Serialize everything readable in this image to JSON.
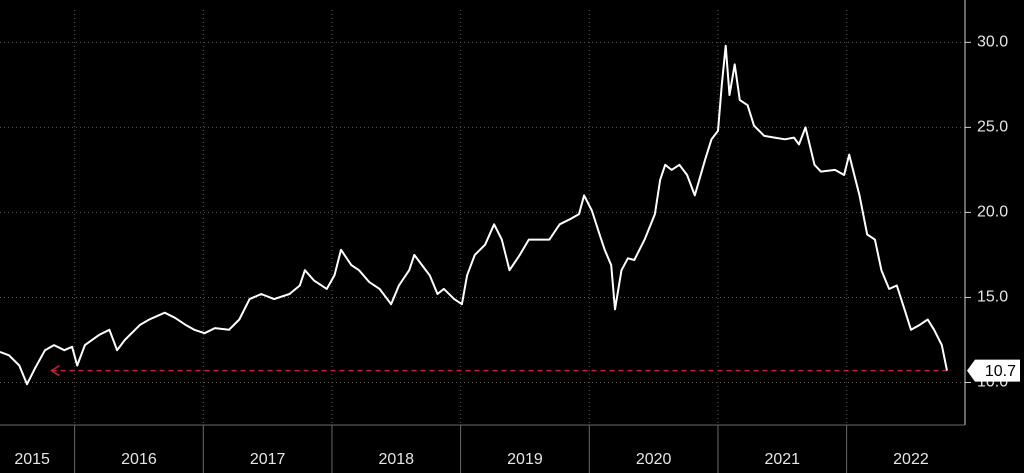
{
  "chart_data": {
    "type": "line",
    "color": "#ffffff",
    "grid": true,
    "xlim": [
      2015.42,
      2022.92
    ],
    "ylim": [
      7.5,
      31.9
    ],
    "yticks": [
      {
        "value": 10,
        "label": "10.0"
      },
      {
        "value": 15,
        "label": "15.0"
      },
      {
        "value": 20,
        "label": "20.0"
      },
      {
        "value": 25,
        "label": "25.0"
      },
      {
        "value": 30,
        "label": "30.0"
      }
    ],
    "xticks": [
      {
        "value": 2015.67,
        "label": "2015"
      },
      {
        "value": 2016.5,
        "label": "2016"
      },
      {
        "value": 2017.5,
        "label": "2017"
      },
      {
        "value": 2018.5,
        "label": "2018"
      },
      {
        "value": 2019.5,
        "label": "2019"
      },
      {
        "value": 2020.5,
        "label": "2020"
      },
      {
        "value": 2021.5,
        "label": "2021"
      },
      {
        "value": 2022.5,
        "label": "2022"
      }
    ],
    "xgrid": [
      2016,
      2017,
      2018,
      2019,
      2020,
      2021,
      2022
    ],
    "last_value": {
      "value": 10.7,
      "label": "10.7",
      "line_color": "#c8203a",
      "line_start": 2015.82
    },
    "x": [
      2015.42,
      2015.49,
      2015.57,
      2015.63,
      2015.69,
      2015.77,
      2015.84,
      2015.92,
      2015.98,
      2016.02,
      2016.08,
      2016.19,
      2016.27,
      2016.33,
      2016.39,
      2016.51,
      2016.58,
      2016.7,
      2016.78,
      2016.86,
      2016.93,
      2017.01,
      2017.09,
      2017.2,
      2017.28,
      2017.36,
      2017.45,
      2017.55,
      2017.67,
      2017.75,
      2017.79,
      2017.86,
      2017.96,
      2018.02,
      2018.07,
      2018.15,
      2018.21,
      2018.29,
      2018.37,
      2018.46,
      2018.52,
      2018.6,
      2018.64,
      2018.7,
      2018.76,
      2018.82,
      2018.87,
      2018.95,
      2019.01,
      2019.05,
      2019.11,
      2019.19,
      2019.26,
      2019.32,
      2019.38,
      2019.46,
      2019.53,
      2019.61,
      2019.69,
      2019.77,
      2019.85,
      2019.92,
      2019.96,
      2020.02,
      2020.08,
      2020.12,
      2020.17,
      2020.2,
      2020.25,
      2020.3,
      2020.35,
      2020.43,
      2020.51,
      2020.55,
      2020.59,
      2020.64,
      2020.7,
      2020.76,
      2020.82,
      2020.9,
      2020.95,
      2021.0,
      2021.03,
      2021.06,
      2021.09,
      2021.13,
      2021.17,
      2021.23,
      2021.28,
      2021.36,
      2021.44,
      2021.52,
      2021.59,
      2021.63,
      2021.68,
      2021.75,
      2021.8,
      2021.91,
      2021.98,
      2022.02,
      2022.06,
      2022.1,
      2022.16,
      2022.22,
      2022.27,
      2022.33,
      2022.39,
      2022.45,
      2022.5,
      2022.57,
      2022.63,
      2022.68,
      2022.74,
      2022.78
    ],
    "values": [
      11.8,
      11.6,
      11.0,
      9.9,
      10.8,
      11.9,
      12.2,
      11.9,
      12.1,
      11.0,
      12.2,
      12.8,
      13.1,
      11.9,
      12.5,
      13.4,
      13.7,
      14.1,
      13.8,
      13.4,
      13.1,
      12.9,
      13.2,
      13.1,
      13.7,
      14.9,
      15.2,
      14.9,
      15.2,
      15.7,
      16.6,
      16.0,
      15.5,
      16.3,
      17.8,
      16.9,
      16.6,
      15.9,
      15.5,
      14.6,
      15.7,
      16.6,
      17.5,
      16.9,
      16.3,
      15.2,
      15.5,
      14.9,
      14.6,
      16.3,
      17.5,
      18.1,
      19.3,
      18.4,
      16.6,
      17.5,
      18.4,
      18.4,
      18.4,
      19.3,
      19.6,
      19.9,
      21.0,
      20.1,
      18.7,
      17.8,
      16.9,
      14.3,
      16.6,
      17.3,
      17.2,
      18.4,
      19.9,
      21.9,
      22.8,
      22.5,
      22.8,
      22.2,
      21.0,
      23.1,
      24.3,
      24.8,
      27.5,
      29.8,
      26.9,
      28.7,
      26.6,
      26.3,
      25.1,
      24.5,
      24.4,
      24.3,
      24.4,
      24.0,
      25.0,
      22.8,
      22.4,
      22.5,
      22.2,
      23.4,
      22.2,
      21.0,
      18.7,
      18.4,
      16.6,
      15.5,
      15.7,
      14.3,
      13.1,
      13.4,
      13.7,
      13.1,
      12.2,
      10.7
    ]
  }
}
